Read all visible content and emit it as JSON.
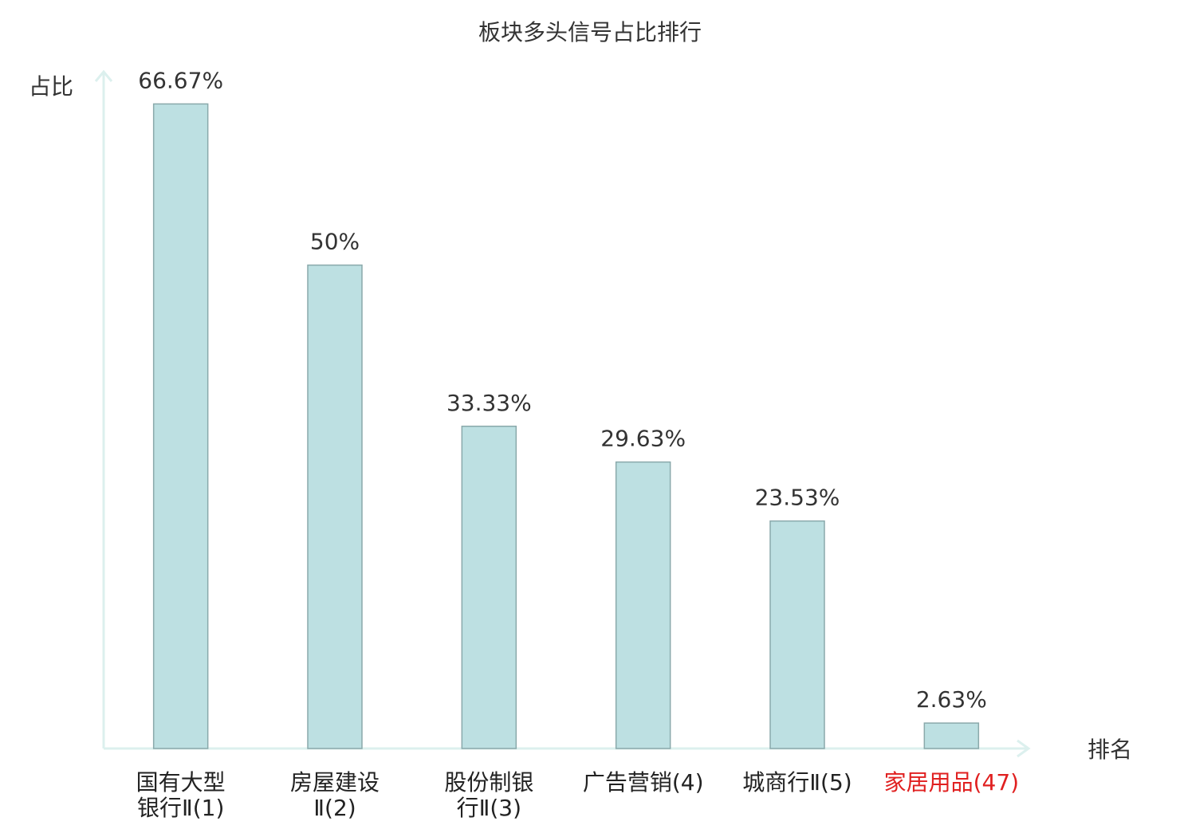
{
  "chart_data": {
    "type": "bar",
    "title": "板块多头信号占比排行",
    "y_label": "占比",
    "x_label": "排名",
    "categories": [
      [
        "国有大型",
        "银行Ⅱ(1)"
      ],
      [
        "房屋建设",
        "Ⅱ(2)"
      ],
      [
        "股份制银",
        "行Ⅱ(3)"
      ],
      [
        "广告营销(4)"
      ],
      [
        "城商行Ⅱ(5)"
      ],
      [
        "家居用品(47)"
      ]
    ],
    "category_colors": [
      "#222222",
      "#222222",
      "#222222",
      "#222222",
      "#222222",
      "#e02020"
    ],
    "values": [
      66.67,
      50,
      33.33,
      29.63,
      23.53,
      2.63
    ],
    "value_labels": [
      "66.67%",
      "50%",
      "33.33%",
      "29.63%",
      "23.53%",
      "2.63%"
    ],
    "color": "#bde0e2",
    "ylim": [
      0,
      70
    ]
  }
}
